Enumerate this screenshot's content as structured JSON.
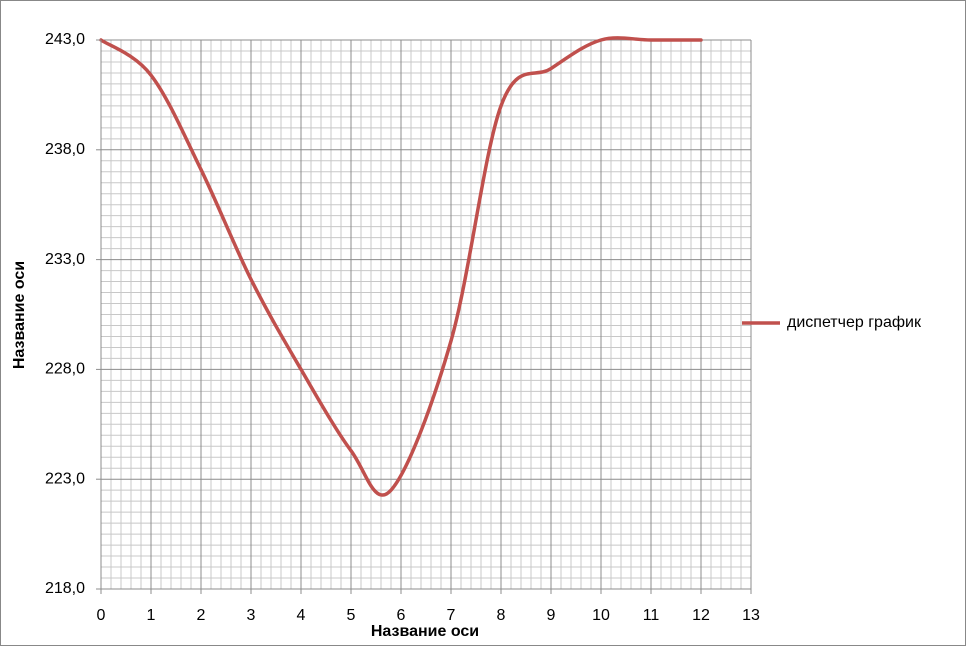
{
  "chart_data": {
    "type": "line",
    "x_label": "Название оси",
    "y_label": "Название оси",
    "series": [
      {
        "name": "диспетчер график",
        "color": "#c0504d",
        "x": [
          0,
          1,
          2,
          3,
          4,
          5,
          5.8,
          7,
          8,
          9,
          10,
          11,
          12
        ],
        "values": [
          243.0,
          241.4,
          237.1,
          232.1,
          228.0,
          224.3,
          222.5,
          229.3,
          240.0,
          241.7,
          243.0,
          243.0,
          243.0
        ]
      }
    ],
    "xlim": [
      0,
      13
    ],
    "xticks": [
      0,
      1,
      2,
      3,
      4,
      5,
      6,
      7,
      8,
      9,
      10,
      11,
      12,
      13
    ],
    "ylim": [
      218,
      243
    ],
    "yticks": [
      {
        "value": 218,
        "label": "218,0"
      },
      {
        "value": 223,
        "label": "223,0"
      },
      {
        "value": 228,
        "label": "228,0"
      },
      {
        "value": 233,
        "label": "233,0"
      },
      {
        "value": 238,
        "label": "238,0"
      },
      {
        "value": 243,
        "label": "243,0"
      }
    ],
    "grid": true,
    "legend": "right"
  }
}
